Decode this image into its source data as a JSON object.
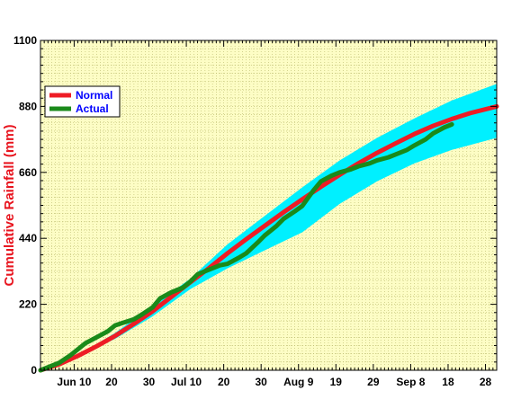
{
  "chart_data": {
    "type": "line",
    "ylabel": "Cumulative Rainfall (mm)",
    "ylim": [
      0,
      1100
    ],
    "y_ticks": [
      0,
      220,
      440,
      660,
      880,
      1100
    ],
    "x_day_range": [
      0,
      122
    ],
    "x_ticks": [
      {
        "day": 9,
        "label": "Jun 10"
      },
      {
        "day": 19,
        "label": "20"
      },
      {
        "day": 29,
        "label": "30"
      },
      {
        "day": 39,
        "label": "Jul 10"
      },
      {
        "day": 49,
        "label": "20"
      },
      {
        "day": 59,
        "label": "30"
      },
      {
        "day": 69,
        "label": "Aug 9"
      },
      {
        "day": 79,
        "label": "19"
      },
      {
        "day": 89,
        "label": "29"
      },
      {
        "day": 99,
        "label": "Sep 8"
      },
      {
        "day": 109,
        "label": "18"
      },
      {
        "day": 119,
        "label": "28"
      }
    ],
    "legend": {
      "position": "top-left",
      "entries": [
        "Normal",
        "Actual"
      ]
    },
    "grid": true,
    "series": [
      {
        "name": "Normal",
        "color": "#ee1c25",
        "x": [
          0,
          5,
          10,
          15,
          20,
          25,
          30,
          35,
          40,
          45,
          50,
          55,
          60,
          65,
          70,
          75,
          80,
          85,
          90,
          95,
          100,
          105,
          110,
          115,
          122
        ],
        "values": [
          0,
          20,
          48,
          80,
          115,
          155,
          197,
          245,
          293,
          340,
          390,
          437,
          482,
          527,
          570,
          612,
          652,
          690,
          725,
          757,
          788,
          815,
          838,
          858,
          880
        ]
      },
      {
        "name": "Actual",
        "color": "#1a8a1a",
        "x": [
          0,
          5,
          8,
          10,
          12,
          15,
          18,
          20,
          22,
          25,
          27,
          30,
          32,
          35,
          38,
          40,
          42,
          45,
          48,
          50,
          53,
          55,
          58,
          60,
          63,
          65,
          68,
          70,
          73,
          75,
          78,
          80,
          83,
          85,
          88,
          90,
          93,
          95,
          98,
          100,
          103,
          105,
          108,
          110
        ],
        "values": [
          0,
          25,
          50,
          70,
          90,
          110,
          130,
          150,
          158,
          170,
          185,
          210,
          240,
          260,
          275,
          295,
          320,
          335,
          350,
          355,
          375,
          390,
          425,
          450,
          480,
          505,
          530,
          548,
          600,
          630,
          650,
          660,
          670,
          680,
          690,
          700,
          710,
          720,
          735,
          750,
          770,
          790,
          810,
          820
        ]
      }
    ],
    "band": {
      "name": "normal range",
      "color": "#00f0ff",
      "x": [
        0,
        10,
        20,
        30,
        40,
        50,
        60,
        70,
        80,
        90,
        100,
        110,
        122
      ],
      "lower": [
        0,
        45,
        105,
        180,
        270,
        340,
        400,
        460,
        555,
        630,
        690,
        735,
        775
      ],
      "upper": [
        0,
        50,
        125,
        215,
        305,
        420,
        515,
        610,
        700,
        775,
        840,
        900,
        955
      ]
    },
    "colors": {
      "plot_bg": "#fdfdc5",
      "grid": "#b8b86a",
      "band": "#00f0ff",
      "ylabel": "#e8141e",
      "legend_text": "#0000ff"
    }
  }
}
